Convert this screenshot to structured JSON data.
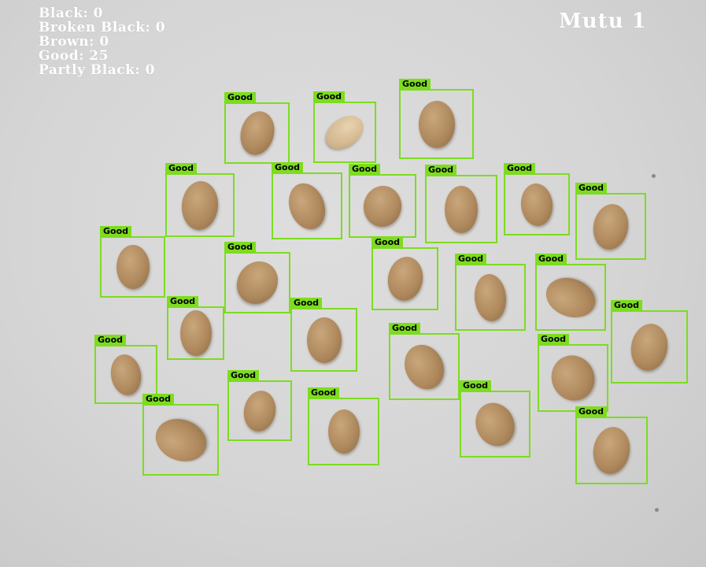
{
  "counts": {
    "black": "Black: 0",
    "broken_black": "Broken Black: 0",
    "brown": "Brown: 0",
    "good": "Good: 25",
    "partly_black": "Partly Black: 0"
  },
  "grade": "Mutu 1",
  "detection_label": "Good",
  "colors": {
    "box": "#7ddc1f",
    "overlay_text": "#ffffff",
    "background": "#d5d5d5"
  }
}
